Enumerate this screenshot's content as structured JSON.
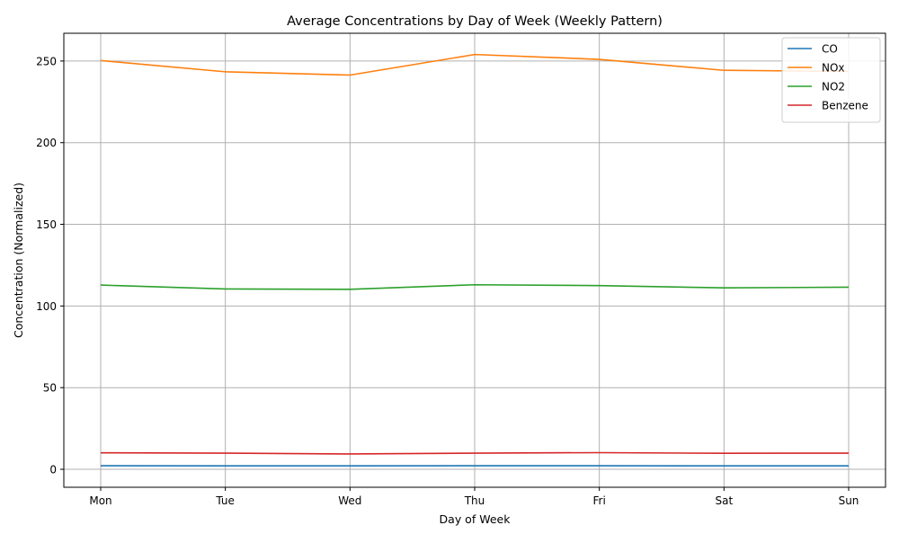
{
  "chart_data": {
    "type": "line",
    "title": "Average Concentrations by Day of Week (Weekly Pattern)",
    "xlabel": "Day of Week",
    "ylabel": "Concentration (Normalized)",
    "categories": [
      "Mon",
      "Tue",
      "Wed",
      "Thu",
      "Fri",
      "Sat",
      "Sun"
    ],
    "ylim": [
      -11,
      267
    ],
    "yticks": [
      0,
      50,
      100,
      150,
      200,
      250
    ],
    "grid": true,
    "legend_position": "top-right",
    "series": [
      {
        "name": "CO",
        "color": "#1f77b4",
        "values": [
          2.2,
          2.1,
          2.1,
          2.2,
          2.2,
          2.1,
          2.1
        ]
      },
      {
        "name": "NOx",
        "color": "#ff7f0e",
        "values": [
          250.3,
          243.4,
          241.4,
          254.0,
          251.0,
          244.3,
          243.6
        ]
      },
      {
        "name": "NO2",
        "color": "#2ca02c",
        "values": [
          112.8,
          110.4,
          110.2,
          113.0,
          112.5,
          111.1,
          111.5
        ]
      },
      {
        "name": "Benzene",
        "color": "#d62728",
        "values": [
          10.1,
          9.9,
          9.4,
          9.9,
          10.2,
          9.8,
          9.9
        ]
      }
    ]
  }
}
